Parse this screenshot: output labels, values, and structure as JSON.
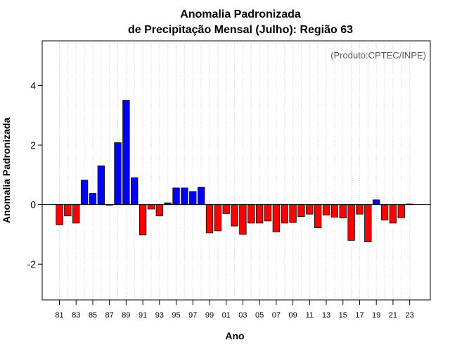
{
  "chart_data": {
    "type": "bar",
    "title": "Anomalia Padronizada",
    "subtitle": "de Precipitação Mensal (Julho): Região 63",
    "credit": "(Produto:CPTEC/INPE)",
    "xlabel": "Ano",
    "ylabel": "Anomalia Padronizada",
    "ylim": [
      -3.2,
      5.5
    ],
    "yticks": [
      -2,
      0,
      2,
      4
    ],
    "grid": "vertical dotted",
    "positive_color": "#0000ff",
    "negative_color": "#ff0000",
    "categories": [
      "81",
      "82",
      "83",
      "84",
      "85",
      "86",
      "87",
      "88",
      "89",
      "90",
      "91",
      "92",
      "93",
      "94",
      "95",
      "96",
      "97",
      "98",
      "99",
      "00",
      "01",
      "02",
      "03",
      "04",
      "05",
      "06",
      "07",
      "08",
      "09",
      "10",
      "11",
      "12",
      "13",
      "14",
      "15",
      "16",
      "17",
      "18",
      "19",
      "20",
      "21",
      "22",
      "23"
    ],
    "tick_labels": [
      "81",
      "83",
      "85",
      "87",
      "89",
      "91",
      "93",
      "95",
      "97",
      "99",
      "01",
      "03",
      "05",
      "07",
      "09",
      "11",
      "13",
      "15",
      "17",
      "19",
      "21",
      "23"
    ],
    "values": [
      -0.68,
      -0.38,
      -0.62,
      0.82,
      0.38,
      1.3,
      0.0,
      2.08,
      3.5,
      0.9,
      -1.02,
      -0.15,
      -0.38,
      0.06,
      0.56,
      0.56,
      0.44,
      0.58,
      -0.95,
      -0.88,
      -0.3,
      -0.72,
      -1.0,
      -0.62,
      -0.62,
      -0.55,
      -0.92,
      -0.62,
      -0.6,
      -0.4,
      -0.32,
      -0.78,
      -0.35,
      -0.42,
      -0.45,
      -1.2,
      -0.32,
      -1.25,
      0.16,
      -0.52,
      -0.62,
      -0.44,
      0.02
    ]
  }
}
